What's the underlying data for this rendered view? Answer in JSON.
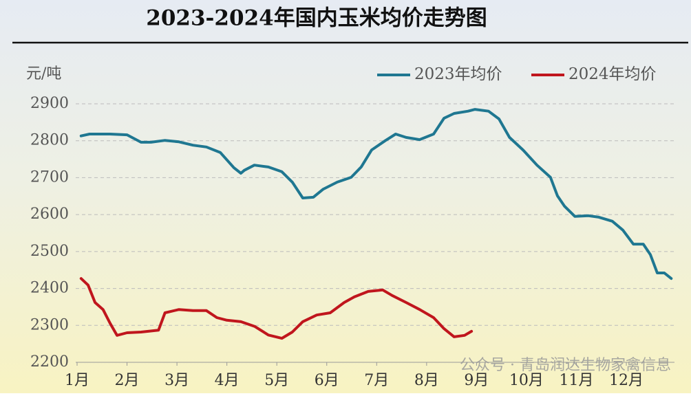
{
  "chart_data": {
    "type": "line",
    "title": "2023-2024年国内玉米均价走势图",
    "y_label": "元/吨",
    "annotation": "公众号 · 青岛润达生物家禽信息",
    "xlim": [
      1,
      12.95
    ],
    "xticks": [
      {
        "value": 1,
        "label": "1月"
      },
      {
        "value": 2,
        "label": "2月"
      },
      {
        "value": 3,
        "label": "3月"
      },
      {
        "value": 4,
        "label": "4月"
      },
      {
        "value": 5,
        "label": "5月"
      },
      {
        "value": 6,
        "label": "6月"
      },
      {
        "value": 7,
        "label": "7月"
      },
      {
        "value": 8,
        "label": "8月"
      },
      {
        "value": 9,
        "label": "9月"
      },
      {
        "value": 10,
        "label": "10月"
      },
      {
        "value": 11,
        "label": "11月"
      },
      {
        "value": 12,
        "label": "12月"
      }
    ],
    "ylim": [
      2200,
      2900
    ],
    "yticks": [
      2200,
      2300,
      2400,
      2500,
      2600,
      2700,
      2800,
      2900
    ],
    "grid": true,
    "legend": "top-right",
    "series": [
      {
        "name": "2023年均价",
        "color": "#1f7791",
        "x": [
          1.08,
          1.25,
          1.66,
          2.0,
          2.28,
          2.48,
          2.76,
          3.04,
          3.32,
          3.59,
          3.87,
          4.14,
          4.28,
          4.35,
          4.55,
          4.83,
          5.1,
          5.31,
          5.52,
          5.73,
          5.93,
          6.21,
          6.49,
          6.69,
          6.9,
          7.17,
          7.38,
          7.59,
          7.86,
          8.14,
          8.35,
          8.55,
          8.83,
          8.97,
          9.24,
          9.45,
          9.66,
          9.93,
          10.21,
          10.48,
          10.62,
          10.76,
          10.97,
          11.24,
          11.45,
          11.72,
          11.93,
          12.14,
          12.34,
          12.48,
          12.62,
          12.76,
          12.9
        ],
        "values": [
          2813,
          2818,
          2818,
          2816,
          2796,
          2796,
          2801,
          2797,
          2788,
          2783,
          2768,
          2727,
          2712,
          2720,
          2734,
          2729,
          2716,
          2688,
          2645,
          2647,
          2669,
          2688,
          2701,
          2729,
          2775,
          2800,
          2818,
          2809,
          2803,
          2818,
          2861,
          2874,
          2880,
          2885,
          2880,
          2859,
          2809,
          2775,
          2734,
          2701,
          2651,
          2623,
          2595,
          2597,
          2593,
          2582,
          2558,
          2520,
          2520,
          2492,
          2442,
          2442,
          2427
        ]
      },
      {
        "name": "2024年均价",
        "color": "#c0161d",
        "x": [
          1.08,
          1.22,
          1.36,
          1.52,
          1.66,
          1.8,
          2.0,
          2.28,
          2.63,
          2.76,
          3.04,
          3.32,
          3.59,
          3.8,
          4.0,
          4.28,
          4.56,
          4.83,
          5.1,
          5.31,
          5.52,
          5.8,
          6.07,
          6.35,
          6.55,
          6.83,
          7.12,
          7.31,
          7.59,
          7.86,
          8.14,
          8.35,
          8.55,
          8.76,
          8.9
        ],
        "values": [
          2427,
          2409,
          2362,
          2343,
          2306,
          2273,
          2280,
          2282,
          2287,
          2334,
          2343,
          2340,
          2340,
          2321,
          2314,
          2310,
          2297,
          2274,
          2265,
          2282,
          2310,
          2328,
          2334,
          2362,
          2377,
          2392,
          2396,
          2381,
          2362,
          2343,
          2321,
          2291,
          2269,
          2273,
          2284
        ]
      }
    ]
  }
}
